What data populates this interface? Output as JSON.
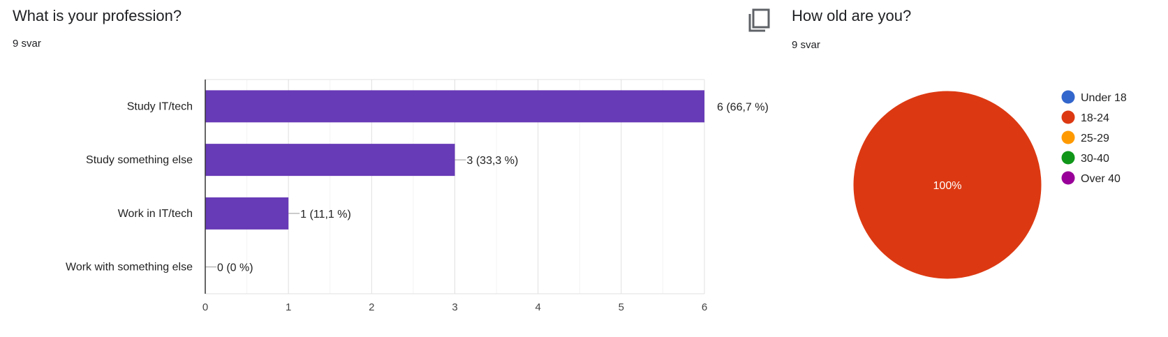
{
  "charts": [
    {
      "title": "What is your profession?",
      "responses": "9 svar"
    },
    {
      "title": "How old are you?",
      "responses": "9 svar",
      "copy_icon": "copy-icon"
    }
  ],
  "chart_data": [
    {
      "type": "bar",
      "orientation": "horizontal",
      "title": "What is your profession?",
      "categories": [
        "Study IT/tech",
        "Study something else",
        "Work in IT/tech",
        "Work with something else"
      ],
      "values": [
        6,
        3,
        1,
        0
      ],
      "data_labels": [
        "6 (66,7 %)",
        "3 (33,3 %)",
        "1 (11,1 %)",
        "0 (0 %)"
      ],
      "xlim": [
        0,
        6
      ],
      "xticks": [
        "0",
        "1",
        "2",
        "3",
        "4",
        "5",
        "6"
      ],
      "grid": true,
      "color": "#673ab7"
    },
    {
      "type": "pie",
      "title": "How old are you?",
      "labels": [
        "Under 18",
        "18-24",
        "25-29",
        "30-40",
        "Over 40"
      ],
      "values": [
        0,
        100,
        0,
        0,
        0
      ],
      "colors": [
        "#3366cc",
        "#dc3912",
        "#ff9900",
        "#109618",
        "#990099"
      ],
      "slice_labels": [
        "100%"
      ],
      "legend_position": "right"
    }
  ]
}
